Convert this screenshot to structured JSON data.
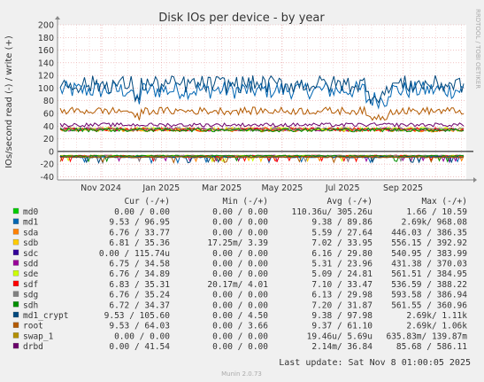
{
  "chart_data": {
    "type": "line",
    "title": "Disk IOs per device - by year",
    "ylabel": "IOs/second read (-) / write (+)",
    "ylim": [
      -45,
      200
    ],
    "yticks": [
      -40,
      -20,
      0,
      20,
      40,
      60,
      80,
      100,
      120,
      140,
      160,
      180,
      200
    ],
    "x_ticks": [
      "Nov 2024",
      "Jan 2025",
      "Mar 2025",
      "May 2025",
      "Jul 2025",
      "Sep 2025"
    ],
    "side_text": "RRDTOOL / TOBI OETIKER",
    "legend_header": [
      "Cur (-/+)",
      "Min (-/+)",
      "Avg (-/+)",
      "Max (-/+)"
    ],
    "series": [
      {
        "name": "md0",
        "color": "#00cc00",
        "cur": "0.00 /   0.00",
        "min": "0.00 /   0.00",
        "avg": "110.36u/ 305.26u",
        "max": "1.66 /  10.59",
        "write_level": 0,
        "read_level": 0
      },
      {
        "name": "md1",
        "color": "#0066b3",
        "cur": "9.53 /  96.95",
        "min": "0.00 /   0.00",
        "avg": "9.38 /  89.86",
        "max": "2.69k/ 968.08",
        "write_level": 97,
        "read_level": -9
      },
      {
        "name": "sda",
        "color": "#ff8000",
        "cur": "6.76 /  33.77",
        "min": "0.00 /   0.00",
        "avg": "5.59 /  27.64",
        "max": "446.03 / 386.35",
        "write_level": 34,
        "read_level": -7
      },
      {
        "name": "sdb",
        "color": "#ffcc00",
        "cur": "6.81 /  35.36",
        "min": "17.25m/   3.39",
        "avg": "7.02 /  33.95",
        "max": "556.15 / 392.92",
        "write_level": 35,
        "read_level": -7
      },
      {
        "name": "sdc",
        "color": "#330099",
        "cur": "0.00 / 115.74u",
        "min": "0.00 /   0.00",
        "avg": "6.16 /  29.80",
        "max": "540.95 / 383.99",
        "write_level": 0,
        "read_level": 0
      },
      {
        "name": "sdd",
        "color": "#990099",
        "cur": "6.75 /  34.58",
        "min": "0.00 /   0.00",
        "avg": "5.31 /  23.96",
        "max": "431.38 / 370.03",
        "write_level": 35,
        "read_level": -7
      },
      {
        "name": "sde",
        "color": "#ccff00",
        "cur": "6.76 /  34.89",
        "min": "0.00 /   0.00",
        "avg": "5.09 /  24.81",
        "max": "561.51 / 384.95",
        "write_level": 35,
        "read_level": -7
      },
      {
        "name": "sdf",
        "color": "#ff0000",
        "cur": "6.83 /  35.31",
        "min": "20.17m/   4.01",
        "avg": "7.10 /  33.47",
        "max": "536.59 / 388.22",
        "write_level": 35,
        "read_level": -7
      },
      {
        "name": "sdg",
        "color": "#808080",
        "cur": "6.76 /  35.24",
        "min": "0.00 /   0.00",
        "avg": "6.13 /  29.98",
        "max": "593.58 / 386.94",
        "write_level": 35,
        "read_level": -7
      },
      {
        "name": "sdh",
        "color": "#008f00",
        "cur": "6.72 /  34.37",
        "min": "0.00 /   0.00",
        "avg": "7.20 /  31.87",
        "max": "561.55 / 360.96",
        "write_level": 34,
        "read_level": -7
      },
      {
        "name": "md1_crypt",
        "color": "#00487d",
        "cur": "9.53 / 105.60",
        "min": "0.00 /   4.50",
        "avg": "9.38 /  97.98",
        "max": "2.69k/   1.11k",
        "write_level": 106,
        "read_level": -9
      },
      {
        "name": "root",
        "color": "#b35a00",
        "cur": "9.53 /  64.03",
        "min": "0.00 /   3.66",
        "avg": "9.37 /  61.10",
        "max": "2.69k/   1.06k",
        "write_level": 64,
        "read_level": -9
      },
      {
        "name": "swap_1",
        "color": "#b38f00",
        "cur": "0.00 /   0.00",
        "min": "0.00 /   0.00",
        "avg": "19.46u/   5.69u",
        "max": "635.83m/ 139.87m",
        "write_level": 0,
        "read_level": 0
      },
      {
        "name": "drbd",
        "color": "#6b006b",
        "cur": "0.00 /  41.54",
        "min": "0.00 /   0.00",
        "avg": "2.14m/  36.84",
        "max": "85.68 / 586.11",
        "write_level": 42,
        "read_level": 0
      }
    ],
    "last_update": "Last update: Sat Nov  8 01:00:05 2025",
    "footer": "Munin 2.0.73"
  }
}
